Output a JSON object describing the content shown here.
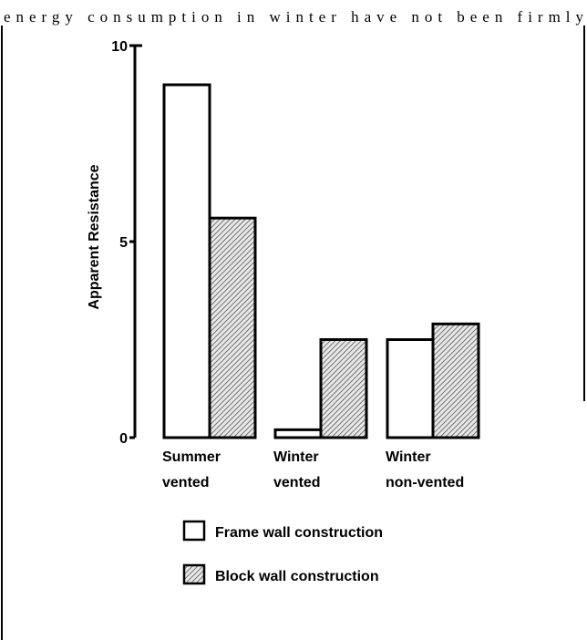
{
  "header_text": "energy consumption in winter have not been firmly",
  "chart_data": {
    "type": "bar",
    "ylabel": "Apparent Resistance",
    "categories": [
      [
        "Summer",
        "vented"
      ],
      [
        "Winter",
        "vented"
      ],
      [
        "Winter",
        "non-vented"
      ]
    ],
    "series": [
      {
        "name": "Frame wall construction",
        "color": "#ffffff",
        "values": [
          9.0,
          0.2,
          2.5
        ]
      },
      {
        "name": "Block wall construction",
        "color": "#777777",
        "hatch": true,
        "values": [
          5.6,
          2.5,
          2.9
        ]
      }
    ],
    "ylim": [
      0,
      10
    ],
    "yticks": [
      0,
      5,
      10
    ]
  }
}
